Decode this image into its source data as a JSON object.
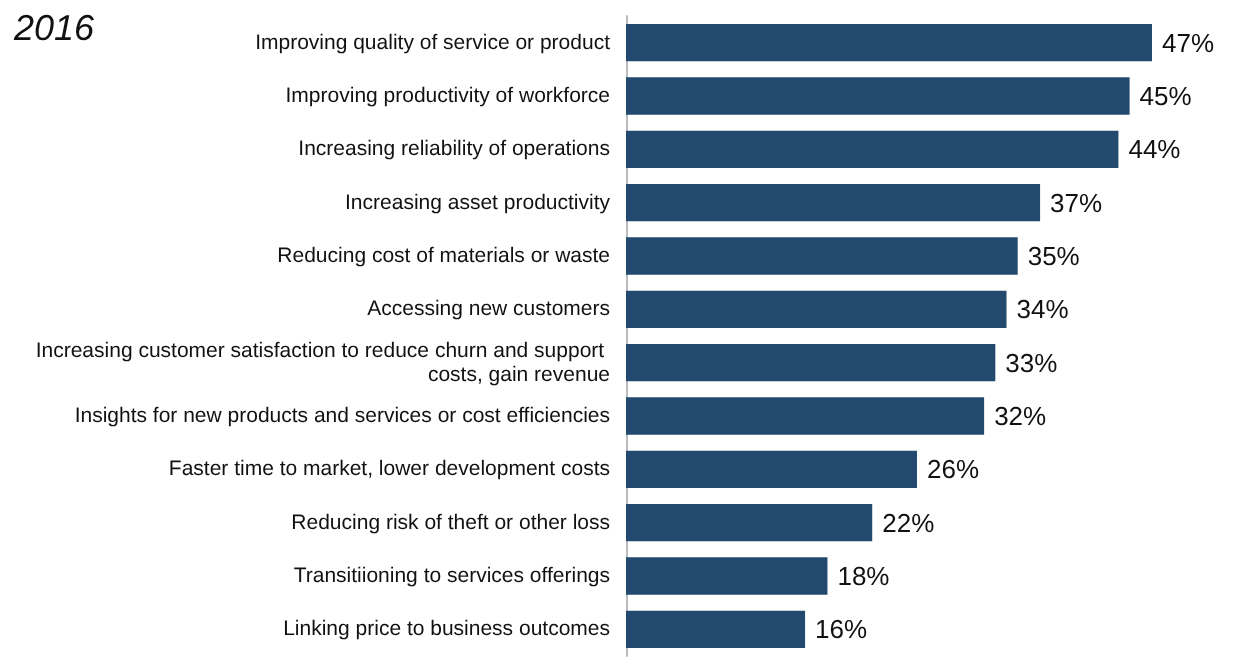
{
  "chart_data": {
    "type": "bar",
    "orientation": "horizontal",
    "title": "2016",
    "categories": [
      "Improving quality of service or product",
      "Improving productivity of workforce",
      "Increasing reliability of operations",
      "Increasing asset productivity",
      "Reducing cost of materials or waste",
      "Accessing new customers",
      "Increasing customer satisfaction to reduce churn and support costs, gain revenue",
      "Insights for new products and services or cost efficiencies",
      "Faster time to market, lower development costs",
      "Reducing risk of theft or other loss",
      "Transitiioning to services offerings",
      "Linking price to business outcomes"
    ],
    "values": [
      47,
      45,
      44,
      37,
      35,
      34,
      33,
      32,
      26,
      22,
      18,
      16
    ],
    "value_labels": [
      "47%",
      "45%",
      "44%",
      "37%",
      "35%",
      "34%",
      "33%",
      "32%",
      "26%",
      "22%",
      "18%",
      "16%"
    ],
    "color": "#234a6e",
    "tick_labels": "y"
  }
}
